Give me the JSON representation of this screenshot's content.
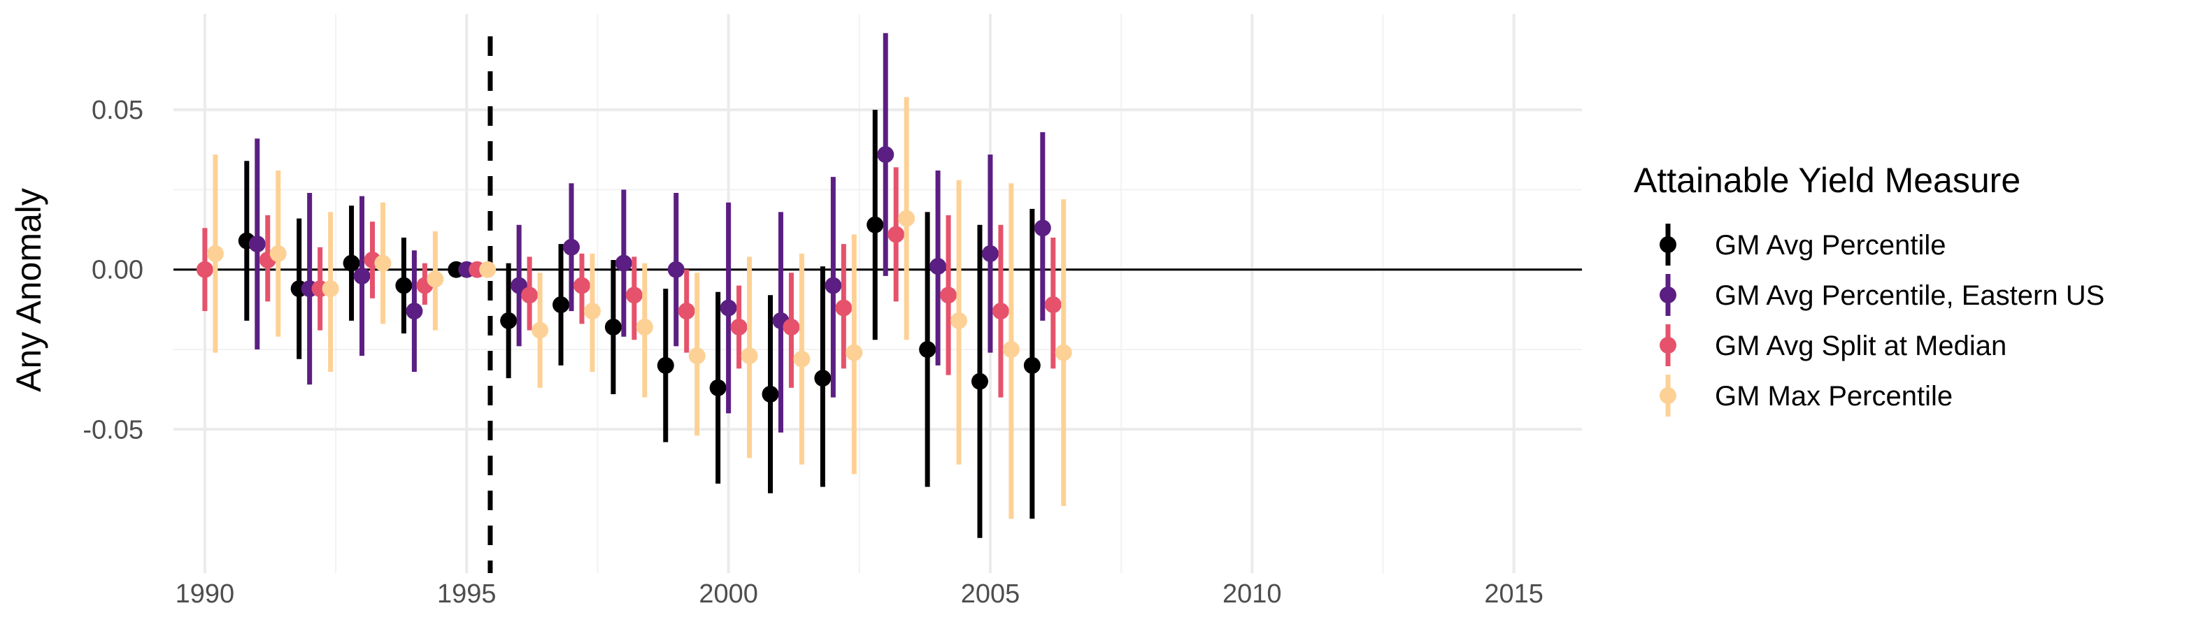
{
  "chart_data": {
    "type": "scatter",
    "subtype": "point-range",
    "xlabel": "",
    "ylabel": "Any Anomaly",
    "xlim": [
      1989.4,
      2016.3
    ],
    "ylim": [
      -0.095,
      0.08
    ],
    "x_ticks": [
      "1990",
      "1995",
      "2000",
      "2005",
      "2010",
      "2015"
    ],
    "y_ticks": [
      "0.05",
      "0.00",
      "-0.05"
    ],
    "y_tick_values": [
      0.05,
      0.0,
      -0.05
    ],
    "x_tick_values": [
      1990,
      1995,
      2000,
      2005,
      2010,
      2015
    ],
    "reference_lines": {
      "horizontal_solid_y": 0.0,
      "vertical_dashed_x": 1995.45
    },
    "grid": true,
    "legend": {
      "title": "Attainable Yield Measure",
      "placement": "right"
    },
    "series": [
      {
        "name": "GM Avg Percentile",
        "color": "#000000",
        "points": [
          {
            "x": 1990.8,
            "y": 0.009,
            "lo": -0.016,
            "hi": 0.034
          },
          {
            "x": 1991.8,
            "y": -0.006,
            "lo": -0.028,
            "hi": 0.016
          },
          {
            "x": 1992.8,
            "y": 0.002,
            "lo": -0.016,
            "hi": 0.02
          },
          {
            "x": 1993.8,
            "y": -0.005,
            "lo": -0.02,
            "hi": 0.01
          },
          {
            "x": 1994.8,
            "y": 0.0,
            "lo": 0.0,
            "hi": 0.0
          },
          {
            "x": 1995.8,
            "y": -0.016,
            "lo": -0.034,
            "hi": 0.002
          },
          {
            "x": 1996.8,
            "y": -0.011,
            "lo": -0.03,
            "hi": 0.008
          },
          {
            "x": 1997.8,
            "y": -0.018,
            "lo": -0.039,
            "hi": 0.003
          },
          {
            "x": 1998.8,
            "y": -0.03,
            "lo": -0.054,
            "hi": -0.006
          },
          {
            "x": 1999.8,
            "y": -0.037,
            "lo": -0.067,
            "hi": -0.007
          },
          {
            "x": 2000.8,
            "y": -0.039,
            "lo": -0.07,
            "hi": -0.008
          },
          {
            "x": 2001.8,
            "y": -0.034,
            "lo": -0.068,
            "hi": 0.001
          },
          {
            "x": 2002.8,
            "y": 0.014,
            "lo": -0.022,
            "hi": 0.05
          },
          {
            "x": 2003.8,
            "y": -0.025,
            "lo": -0.068,
            "hi": 0.018
          },
          {
            "x": 2004.8,
            "y": -0.035,
            "lo": -0.084,
            "hi": 0.014
          },
          {
            "x": 2005.8,
            "y": -0.03,
            "lo": -0.078,
            "hi": 0.019
          }
        ]
      },
      {
        "name": "GM Avg Percentile, Eastern US",
        "color": "#5b1e82",
        "points": [
          {
            "x": 1991.0,
            "y": 0.008,
            "lo": -0.025,
            "hi": 0.041
          },
          {
            "x": 1992.0,
            "y": -0.006,
            "lo": -0.036,
            "hi": 0.024
          },
          {
            "x": 1993.0,
            "y": -0.002,
            "lo": -0.027,
            "hi": 0.023
          },
          {
            "x": 1994.0,
            "y": -0.013,
            "lo": -0.032,
            "hi": 0.006
          },
          {
            "x": 1995.0,
            "y": 0.0,
            "lo": 0.0,
            "hi": 0.0
          },
          {
            "x": 1996.0,
            "y": -0.005,
            "lo": -0.024,
            "hi": 0.014
          },
          {
            "x": 1997.0,
            "y": 0.007,
            "lo": -0.013,
            "hi": 0.027
          },
          {
            "x": 1998.0,
            "y": 0.002,
            "lo": -0.021,
            "hi": 0.025
          },
          {
            "x": 1999.0,
            "y": 0.0,
            "lo": -0.024,
            "hi": 0.024
          },
          {
            "x": 2000.0,
            "y": -0.012,
            "lo": -0.045,
            "hi": 0.021
          },
          {
            "x": 2001.0,
            "y": -0.016,
            "lo": -0.051,
            "hi": 0.018
          },
          {
            "x": 2002.0,
            "y": -0.005,
            "lo": -0.04,
            "hi": 0.029
          },
          {
            "x": 2003.0,
            "y": 0.036,
            "lo": -0.002,
            "hi": 0.074
          },
          {
            "x": 2004.0,
            "y": 0.001,
            "lo": -0.03,
            "hi": 0.031
          },
          {
            "x": 2005.0,
            "y": 0.005,
            "lo": -0.026,
            "hi": 0.036
          },
          {
            "x": 2006.0,
            "y": 0.013,
            "lo": -0.016,
            "hi": 0.043
          }
        ]
      },
      {
        "name": "GM Avg Split at Median",
        "color": "#e6526b",
        "points": [
          {
            "x": 1990.0,
            "y": 0.0,
            "lo": -0.013,
            "hi": 0.013
          },
          {
            "x": 1991.2,
            "y": 0.003,
            "lo": -0.01,
            "hi": 0.017
          },
          {
            "x": 1992.2,
            "y": -0.006,
            "lo": -0.019,
            "hi": 0.007
          },
          {
            "x": 1993.2,
            "y": 0.003,
            "lo": -0.009,
            "hi": 0.015
          },
          {
            "x": 1994.2,
            "y": -0.005,
            "lo": -0.011,
            "hi": 0.002
          },
          {
            "x": 1995.2,
            "y": 0.0,
            "lo": 0.0,
            "hi": 0.0
          },
          {
            "x": 1996.2,
            "y": -0.008,
            "lo": -0.019,
            "hi": 0.004
          },
          {
            "x": 1997.2,
            "y": -0.005,
            "lo": -0.017,
            "hi": 0.005
          },
          {
            "x": 1998.2,
            "y": -0.008,
            "lo": -0.022,
            "hi": 0.004
          },
          {
            "x": 1999.2,
            "y": -0.013,
            "lo": -0.026,
            "hi": 0.0
          },
          {
            "x": 2000.2,
            "y": -0.018,
            "lo": -0.031,
            "hi": -0.005
          },
          {
            "x": 2001.2,
            "y": -0.018,
            "lo": -0.037,
            "hi": -0.001
          },
          {
            "x": 2002.2,
            "y": -0.012,
            "lo": -0.031,
            "hi": 0.008
          },
          {
            "x": 2003.2,
            "y": 0.011,
            "lo": -0.01,
            "hi": 0.032
          },
          {
            "x": 2004.2,
            "y": -0.008,
            "lo": -0.033,
            "hi": 0.017
          },
          {
            "x": 2005.2,
            "y": -0.013,
            "lo": -0.04,
            "hi": 0.014
          },
          {
            "x": 2006.2,
            "y": -0.011,
            "lo": -0.031,
            "hi": 0.01
          }
        ]
      },
      {
        "name": "GM Max Percentile",
        "color": "#fdd195",
        "points": [
          {
            "x": 1990.2,
            "y": 0.005,
            "lo": -0.026,
            "hi": 0.036
          },
          {
            "x": 1991.4,
            "y": 0.005,
            "lo": -0.021,
            "hi": 0.031
          },
          {
            "x": 1992.4,
            "y": -0.006,
            "lo": -0.032,
            "hi": 0.018
          },
          {
            "x": 1993.4,
            "y": 0.002,
            "lo": -0.017,
            "hi": 0.021
          },
          {
            "x": 1994.4,
            "y": -0.003,
            "lo": -0.019,
            "hi": 0.012
          },
          {
            "x": 1995.4,
            "y": 0.0,
            "lo": 0.0,
            "hi": 0.0
          },
          {
            "x": 1996.4,
            "y": -0.019,
            "lo": -0.037,
            "hi": -0.001
          },
          {
            "x": 1997.4,
            "y": -0.013,
            "lo": -0.032,
            "hi": 0.005
          },
          {
            "x": 1998.4,
            "y": -0.018,
            "lo": -0.04,
            "hi": 0.002
          },
          {
            "x": 1999.4,
            "y": -0.027,
            "lo": -0.052,
            "hi": -0.001
          },
          {
            "x": 2000.4,
            "y": -0.027,
            "lo": -0.059,
            "hi": 0.004
          },
          {
            "x": 2001.4,
            "y": -0.028,
            "lo": -0.061,
            "hi": 0.005
          },
          {
            "x": 2002.4,
            "y": -0.026,
            "lo": -0.064,
            "hi": 0.011
          },
          {
            "x": 2003.4,
            "y": 0.016,
            "lo": -0.022,
            "hi": 0.054
          },
          {
            "x": 2004.4,
            "y": -0.016,
            "lo": -0.061,
            "hi": 0.028
          },
          {
            "x": 2005.4,
            "y": -0.025,
            "lo": -0.078,
            "hi": 0.027
          },
          {
            "x": 2006.4,
            "y": -0.026,
            "lo": -0.074,
            "hi": 0.022
          }
        ]
      }
    ]
  }
}
